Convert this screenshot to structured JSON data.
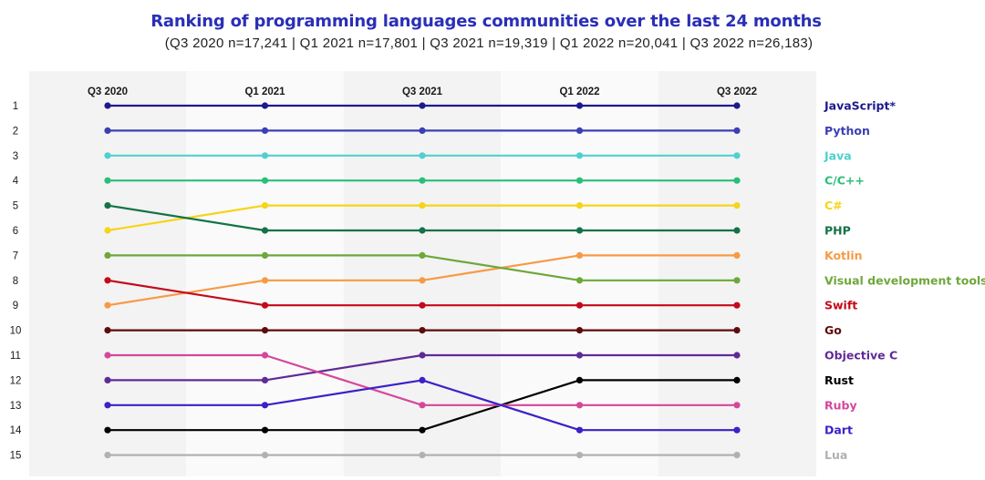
{
  "header": {
    "title": "Ranking of programming languages communities over the last 24 months",
    "subtitle": "(Q3 2020 n=17,241 | Q1 2021 n=17,801 | Q3 2021 n=19,319 | Q1 2022 n=20,041 | Q3 2022 n=26,183)"
  },
  "chart_data": {
    "type": "line",
    "title": "Ranking of programming languages communities over the last 24 months",
    "subtitle": "(Q3 2020 n=17,241 | Q1 2021 n=17,801 | Q3 2021 n=19,319 | Q1 2022 n=20,041 | Q3 2022 n=26,183)",
    "x": [
      "Q3 2020",
      "Q1 2021",
      "Q3 2021",
      "Q1 2022",
      "Q3 2022"
    ],
    "y_ticks": [
      "1",
      "2",
      "3",
      "4",
      "5",
      "6",
      "7",
      "8",
      "9",
      "10",
      "11",
      "12",
      "13",
      "14",
      "15"
    ],
    "ylim": [
      1,
      15
    ],
    "y_inverted": true,
    "grid": false,
    "legend_position": "right",
    "background_bands": "alternating light grey",
    "series": [
      {
        "name": "JavaScript*",
        "values": [
          1,
          1,
          1,
          1,
          1
        ],
        "color": "#1d1a8c"
      },
      {
        "name": "Python",
        "values": [
          2,
          2,
          2,
          2,
          2
        ],
        "color": "#3a3fb5"
      },
      {
        "name": "Java",
        "values": [
          3,
          3,
          3,
          3,
          3
        ],
        "color": "#4fd0cf"
      },
      {
        "name": "C/C++",
        "values": [
          4,
          4,
          4,
          4,
          4
        ],
        "color": "#2bbe78"
      },
      {
        "name": "C#",
        "values": [
          6,
          5,
          5,
          5,
          5
        ],
        "color": "#f6d417"
      },
      {
        "name": "PHP",
        "values": [
          5,
          6,
          6,
          6,
          6
        ],
        "color": "#137247"
      },
      {
        "name": "Kotlin",
        "values": [
          9,
          8,
          8,
          7,
          7
        ],
        "color": "#f79a45"
      },
      {
        "name": "Visual development tools",
        "values": [
          7,
          7,
          7,
          8,
          8
        ],
        "color": "#6ea73a"
      },
      {
        "name": "Swift",
        "values": [
          8,
          9,
          9,
          9,
          9
        ],
        "color": "#c4091b"
      },
      {
        "name": "Go",
        "values": [
          10,
          10,
          10,
          10,
          10
        ],
        "color": "#5e0b0b"
      },
      {
        "name": "Objective C",
        "values": [
          12,
          12,
          11,
          11,
          11
        ],
        "color": "#5f2a98"
      },
      {
        "name": "Rust",
        "values": [
          14,
          14,
          14,
          12,
          12
        ],
        "color": "#000000"
      },
      {
        "name": "Ruby",
        "values": [
          11,
          11,
          13,
          13,
          13
        ],
        "color": "#d5479a"
      },
      {
        "name": "Dart",
        "values": [
          13,
          13,
          12,
          14,
          14
        ],
        "color": "#3a21c8"
      },
      {
        "name": "Lua",
        "values": [
          15,
          15,
          15,
          15,
          15
        ],
        "color": "#b1b1b1"
      }
    ]
  }
}
